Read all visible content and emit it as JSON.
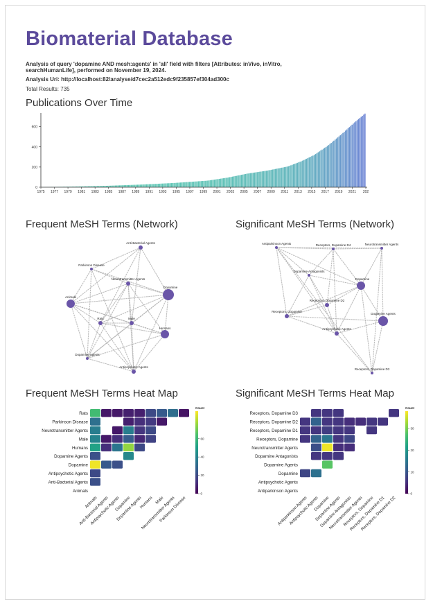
{
  "header": {
    "title": "Biomaterial Database",
    "description": "Analysis of query 'dopamine AND mesh:agents' in 'all' field with filters [Attributes: inVivo, inVitro, searchHumanLife], performed on November 19, 2024.",
    "analysis_uri": "Analysis Uri: http://localhost:82/analyse/d7cec2a512edc9f235857ef304ad300c",
    "total_results": "Total Results: 735"
  },
  "sections": {
    "publications": "Publications Over Time",
    "freq_network": "Frequent MeSH Terms (Network)",
    "sig_network": "Significant MeSH Terms (Network)",
    "freq_heatmap": "Frequent MeSH Terms Heat Map",
    "sig_heatmap": "Significant MeSH Terms Heat Map"
  },
  "chart_data": [
    {
      "type": "bar",
      "title": "Publications Over Time",
      "x_tick_labels": [
        "1975",
        "1977",
        "1979",
        "1981",
        "1983",
        "1985",
        "1987",
        "1989",
        "1991",
        "1993",
        "1995",
        "1997",
        "1999",
        "2001",
        "2003",
        "2005",
        "2007",
        "2009",
        "2011",
        "2013",
        "2015",
        "2017",
        "2019",
        "2021",
        "202"
      ],
      "y_ticks": [
        0,
        200,
        400,
        600
      ],
      "ylim": [
        0,
        735
      ],
      "cumulative_points": [
        [
          1975,
          0
        ],
        [
          1977,
          3
        ],
        [
          1980,
          6
        ],
        [
          1985,
          14
        ],
        [
          1990,
          26
        ],
        [
          1995,
          42
        ],
        [
          2000,
          65
        ],
        [
          2003,
          95
        ],
        [
          2006,
          135
        ],
        [
          2009,
          165
        ],
        [
          2012,
          205
        ],
        [
          2014,
          255
        ],
        [
          2016,
          320
        ],
        [
          2018,
          410
        ],
        [
          2020,
          520
        ],
        [
          2022,
          640
        ],
        [
          2023.7,
          735
        ]
      ],
      "bar_count": 250,
      "colors": {
        "low": "#5ec9b3",
        "high": "#6f86d6"
      }
    },
    {
      "type": "network",
      "title": "Frequent MeSH Terms (Network)",
      "nodes": [
        {
          "label": "Anti-Bacterial Agents",
          "size": 3
        },
        {
          "label": "Parkinson Disease",
          "size": 2
        },
        {
          "label": "Neurotransmitter Agents",
          "size": 3
        },
        {
          "label": "Dopamine",
          "size": 8
        },
        {
          "label": "Animals",
          "size": 6
        },
        {
          "label": "Rats",
          "size": 3
        },
        {
          "label": "Male",
          "size": 3
        },
        {
          "label": "Humans",
          "size": 6
        },
        {
          "label": "Dopamine Agents",
          "size": 2
        },
        {
          "label": "Antipsychotic Agents",
          "size": 3
        }
      ],
      "edges": [
        [
          0,
          1
        ],
        [
          0,
          3
        ],
        [
          0,
          4
        ],
        [
          0,
          5
        ],
        [
          0,
          6
        ],
        [
          1,
          4
        ],
        [
          1,
          2
        ],
        [
          1,
          3
        ],
        [
          1,
          9
        ],
        [
          1,
          8
        ],
        [
          2,
          3
        ],
        [
          2,
          4
        ],
        [
          2,
          5
        ],
        [
          2,
          6
        ],
        [
          2,
          7
        ],
        [
          2,
          8
        ],
        [
          2,
          9
        ],
        [
          3,
          4
        ],
        [
          3,
          5
        ],
        [
          3,
          6
        ],
        [
          3,
          7
        ],
        [
          3,
          8
        ],
        [
          3,
          9
        ],
        [
          4,
          5
        ],
        [
          4,
          6
        ],
        [
          4,
          7
        ],
        [
          4,
          8
        ],
        [
          4,
          9
        ],
        [
          5,
          6
        ],
        [
          5,
          7
        ],
        [
          5,
          8
        ],
        [
          5,
          9
        ],
        [
          6,
          7
        ],
        [
          6,
          8
        ],
        [
          6,
          9
        ],
        [
          7,
          8
        ],
        [
          7,
          9
        ],
        [
          8,
          9
        ]
      ],
      "node_color": "#6a55a8"
    },
    {
      "type": "network",
      "title": "Significant MeSH Terms (Network)",
      "nodes": [
        {
          "label": "Antiparkinson Agents",
          "size": 2
        },
        {
          "label": "Receptors, Dopamine D4",
          "size": 2
        },
        {
          "label": "Neurotransmitter Agents",
          "size": 2
        },
        {
          "label": "Dopamine Antagonists",
          "size": 2
        },
        {
          "label": "Dopamine",
          "size": 6
        },
        {
          "label": "Receptors, Dopamine D2",
          "size": 3
        },
        {
          "label": "Receptors, Dopamine",
          "size": 3
        },
        {
          "label": "Dopamine Agents",
          "size": 7
        },
        {
          "label": "Antipsychotic Agents",
          "size": 3
        },
        {
          "label": "Receptors, Dopamine D3",
          "size": 2
        }
      ],
      "edges": [
        [
          0,
          1
        ],
        [
          0,
          2
        ],
        [
          0,
          4
        ],
        [
          0,
          6
        ],
        [
          0,
          8
        ],
        [
          0,
          9
        ],
        [
          1,
          4
        ],
        [
          1,
          3
        ],
        [
          1,
          5
        ],
        [
          1,
          8
        ],
        [
          2,
          4
        ],
        [
          2,
          7
        ],
        [
          2,
          9
        ],
        [
          3,
          4
        ],
        [
          3,
          5
        ],
        [
          3,
          6
        ],
        [
          3,
          8
        ],
        [
          4,
          5
        ],
        [
          4,
          6
        ],
        [
          4,
          7
        ],
        [
          4,
          8
        ],
        [
          4,
          9
        ],
        [
          5,
          6
        ],
        [
          5,
          8
        ],
        [
          6,
          8
        ],
        [
          6,
          7
        ],
        [
          7,
          8
        ],
        [
          7,
          9
        ],
        [
          8,
          9
        ],
        [
          1,
          2
        ],
        [
          0,
          3
        ]
      ],
      "node_color": "#6a55a8"
    },
    {
      "type": "heatmap",
      "title": "Frequent MeSH Terms Heat Map",
      "rows": [
        "Rats",
        "Parkinson Disease",
        "Neurotransmitter Agents",
        "Male",
        "Humans",
        "Dopamine Agents",
        "Dopamine",
        "Antipsychotic Agents",
        "Anti-Bacterial Agents",
        "Animals"
      ],
      "columns": [
        "Animals",
        "Anti-Bacterial Agents",
        "Antipsychotic Agents",
        "Dopamine",
        "Dopamine Agents",
        "Humans",
        "Male",
        "Neurotransmitter Agents",
        "Parkinson Disease"
      ],
      "values": [
        [
          62,
          6,
          6,
          8,
          8,
          20,
          25,
          32,
          5
        ],
        [
          33,
          null,
          null,
          8,
          12,
          15,
          6,
          null,
          null
        ],
        [
          38,
          null,
          6,
          38,
          14,
          20,
          null,
          null,
          null
        ],
        [
          40,
          6,
          12,
          26,
          10,
          18,
          null,
          null,
          null
        ],
        [
          52,
          12,
          35,
          75,
          20,
          null,
          null,
          null,
          null
        ],
        [
          22,
          null,
          null,
          42,
          null,
          null,
          null,
          null,
          null
        ],
        [
          88,
          25,
          22,
          null,
          null,
          null,
          null,
          null,
          null
        ],
        [
          20,
          null,
          null,
          null,
          null,
          null,
          null,
          null,
          null
        ],
        [
          22,
          null,
          null,
          null,
          null,
          null,
          null,
          null,
          null
        ],
        [
          null,
          null,
          null,
          null,
          null,
          null,
          null,
          null,
          null
        ]
      ],
      "legend_title": "Count",
      "legend_ticks": [
        0,
        20,
        40,
        60
      ],
      "scale_max": 90
    },
    {
      "type": "heatmap",
      "title": "Significant MeSH Terms Heat Map",
      "rows": [
        "Receptors, Dopamine D3",
        "Receptors, Dopamine D2",
        "Receptors, Dopamine D1",
        "Receptors, Dopamine",
        "Neurotransmitter Agents",
        "Dopamine Antagonists",
        "Dopamine Agents",
        "Dopamine",
        "Antipsychotic Agents",
        "Antiparkinson Agents"
      ],
      "columns": [
        "Antiparkinson Agents",
        "Antipsychotic Agents",
        "Dopamine",
        "Dopamine Agents",
        "Dopamine Antagonists",
        "Neurotransmitter Agents",
        "Receptors, Dopamine",
        "Receptors, Dopamine D1",
        "Receptors, Dopamine D2"
      ],
      "values": [
        [
          null,
          6,
          6,
          6,
          null,
          null,
          null,
          null,
          6
        ],
        [
          6,
          12,
          6,
          6,
          5,
          5,
          6,
          6,
          null
        ],
        [
          6,
          6,
          7,
          6,
          6,
          null,
          6,
          null,
          null
        ],
        [
          6,
          12,
          15,
          6,
          8,
          null,
          null,
          null,
          null
        ],
        [
          null,
          9,
          37,
          5,
          5,
          null,
          null,
          null,
          null
        ],
        [
          null,
          6,
          6,
          6,
          null,
          null,
          null,
          null,
          null
        ],
        [
          null,
          null,
          28,
          null,
          null,
          null,
          null,
          null,
          null
        ],
        [
          8,
          14,
          null,
          null,
          null,
          null,
          null,
          null,
          null
        ],
        [
          null,
          null,
          null,
          null,
          null,
          null,
          null,
          null,
          null
        ],
        [
          null,
          null,
          null,
          null,
          null,
          null,
          null,
          null,
          null
        ]
      ],
      "legend_title": "Count",
      "legend_ticks": [
        0,
        10,
        20,
        30
      ],
      "scale_max": 38
    }
  ]
}
